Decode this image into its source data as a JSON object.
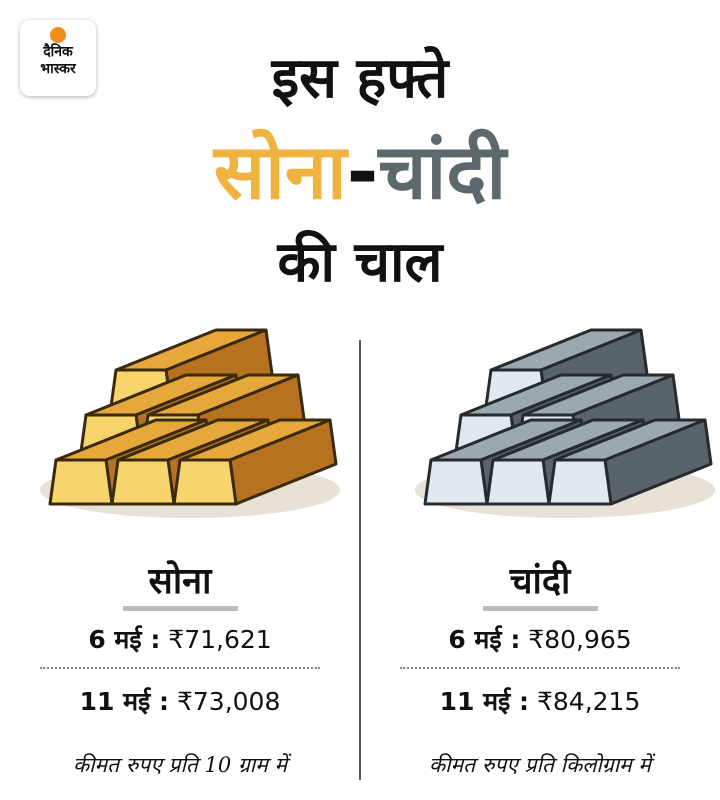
{
  "logo": {
    "line1": "दैनिक",
    "line2": "भास्कर"
  },
  "title": {
    "line1": "इस हफ्ते",
    "gold": "सोना",
    "dash": "-",
    "silver": "चांदी",
    "line3": "की चाल"
  },
  "columns": [
    {
      "name": "सोना",
      "rows": [
        {
          "date": "6 मई :",
          "price": "₹71,621"
        },
        {
          "date": "11 मई :",
          "price": "₹73,008"
        }
      ],
      "note": "कीमत रुपए प्रति 10 ग्राम में"
    },
    {
      "name": "चांदी",
      "rows": [
        {
          "date": "6 मई :",
          "price": "₹80,965"
        },
        {
          "date": "11 मई :",
          "price": "₹84,215"
        }
      ],
      "note": "कीमत रुपए प्रति किलोग्राम में"
    }
  ]
}
